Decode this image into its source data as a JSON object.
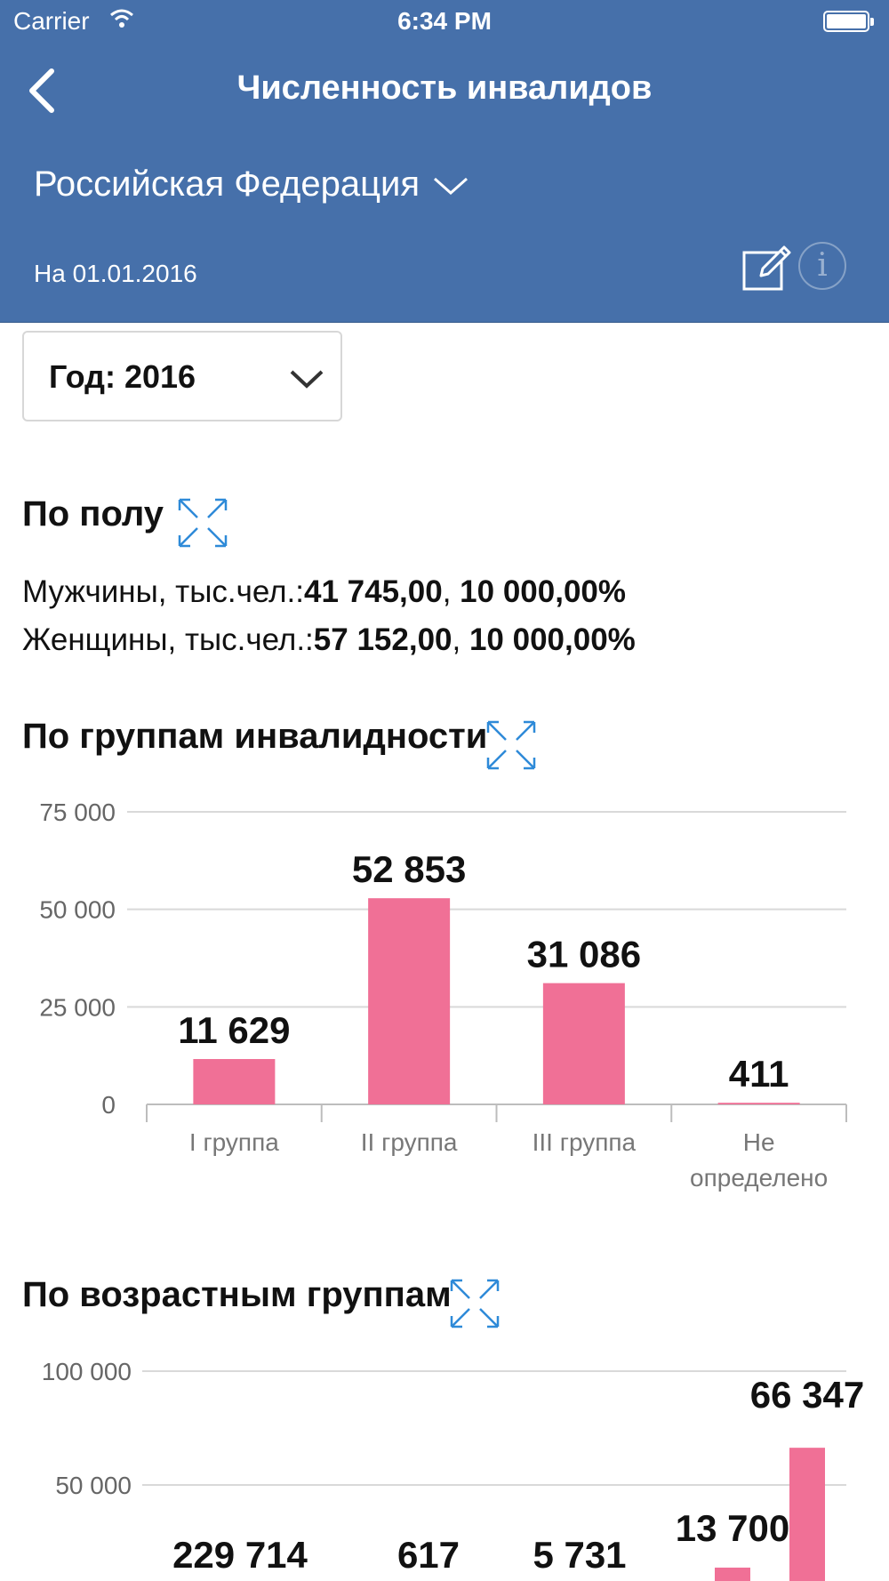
{
  "status_bar": {
    "carrier": "Carrier",
    "time": "6:34 PM"
  },
  "nav": {
    "title": "Численность инвалидов"
  },
  "region": {
    "selected": "Российская Федерация"
  },
  "as_of": "На 01.01.2016",
  "year_select": {
    "label": "Год: 2016"
  },
  "colors": {
    "header": "#4670aa",
    "bar": "#f07096",
    "expand_icon": "#2e8ad8",
    "grid": "#d9d9d9"
  },
  "by_gender": {
    "title": "По полу",
    "rows": [
      {
        "label": "Мужчины, тыс.чел.:",
        "value": "41 745,00",
        "sep": ", ",
        "pct": "10 000,00%"
      },
      {
        "label": "Женщины, тыс.чел.:",
        "value": "57 152,00",
        "sep": ", ",
        "pct": "10 000,00%"
      }
    ]
  },
  "by_disability_group": {
    "title": "По группам инвалидности"
  },
  "by_age_group": {
    "title": "По возрастным группам"
  },
  "chart_data": [
    {
      "type": "bar",
      "categories": [
        "I группа",
        "II группа",
        "III группа",
        "Не определено"
      ],
      "values": [
        11629,
        52853,
        31086,
        411
      ],
      "value_labels": [
        "11 629",
        "52 853",
        "31 086",
        "411"
      ],
      "ylim": [
        0,
        75000
      ],
      "yticks": [
        "0",
        "25 000",
        "50 000",
        "75 000"
      ],
      "grid": true
    },
    {
      "type": "bar",
      "value_labels": [
        "229 714",
        "617",
        "5 731",
        "13 700",
        "66 347"
      ],
      "values": [
        229714,
        617,
        5731,
        13700,
        66347
      ],
      "ylim": [
        0,
        100000
      ],
      "yticks": [
        "50 000",
        "100 000"
      ],
      "grid": true
    }
  ]
}
